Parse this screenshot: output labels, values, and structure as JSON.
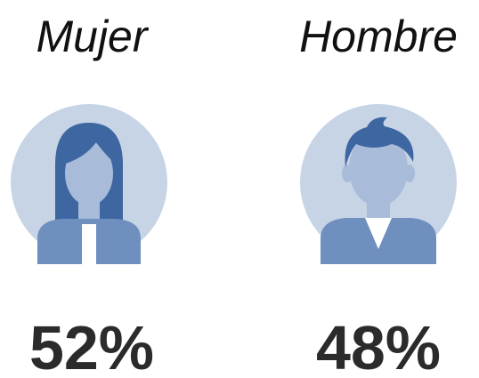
{
  "chart_data": {
    "type": "pictograph",
    "categories": [
      "Mujer",
      "Hombre"
    ],
    "values": [
      52,
      48
    ],
    "value_labels": [
      "52%",
      "48%"
    ]
  }
}
